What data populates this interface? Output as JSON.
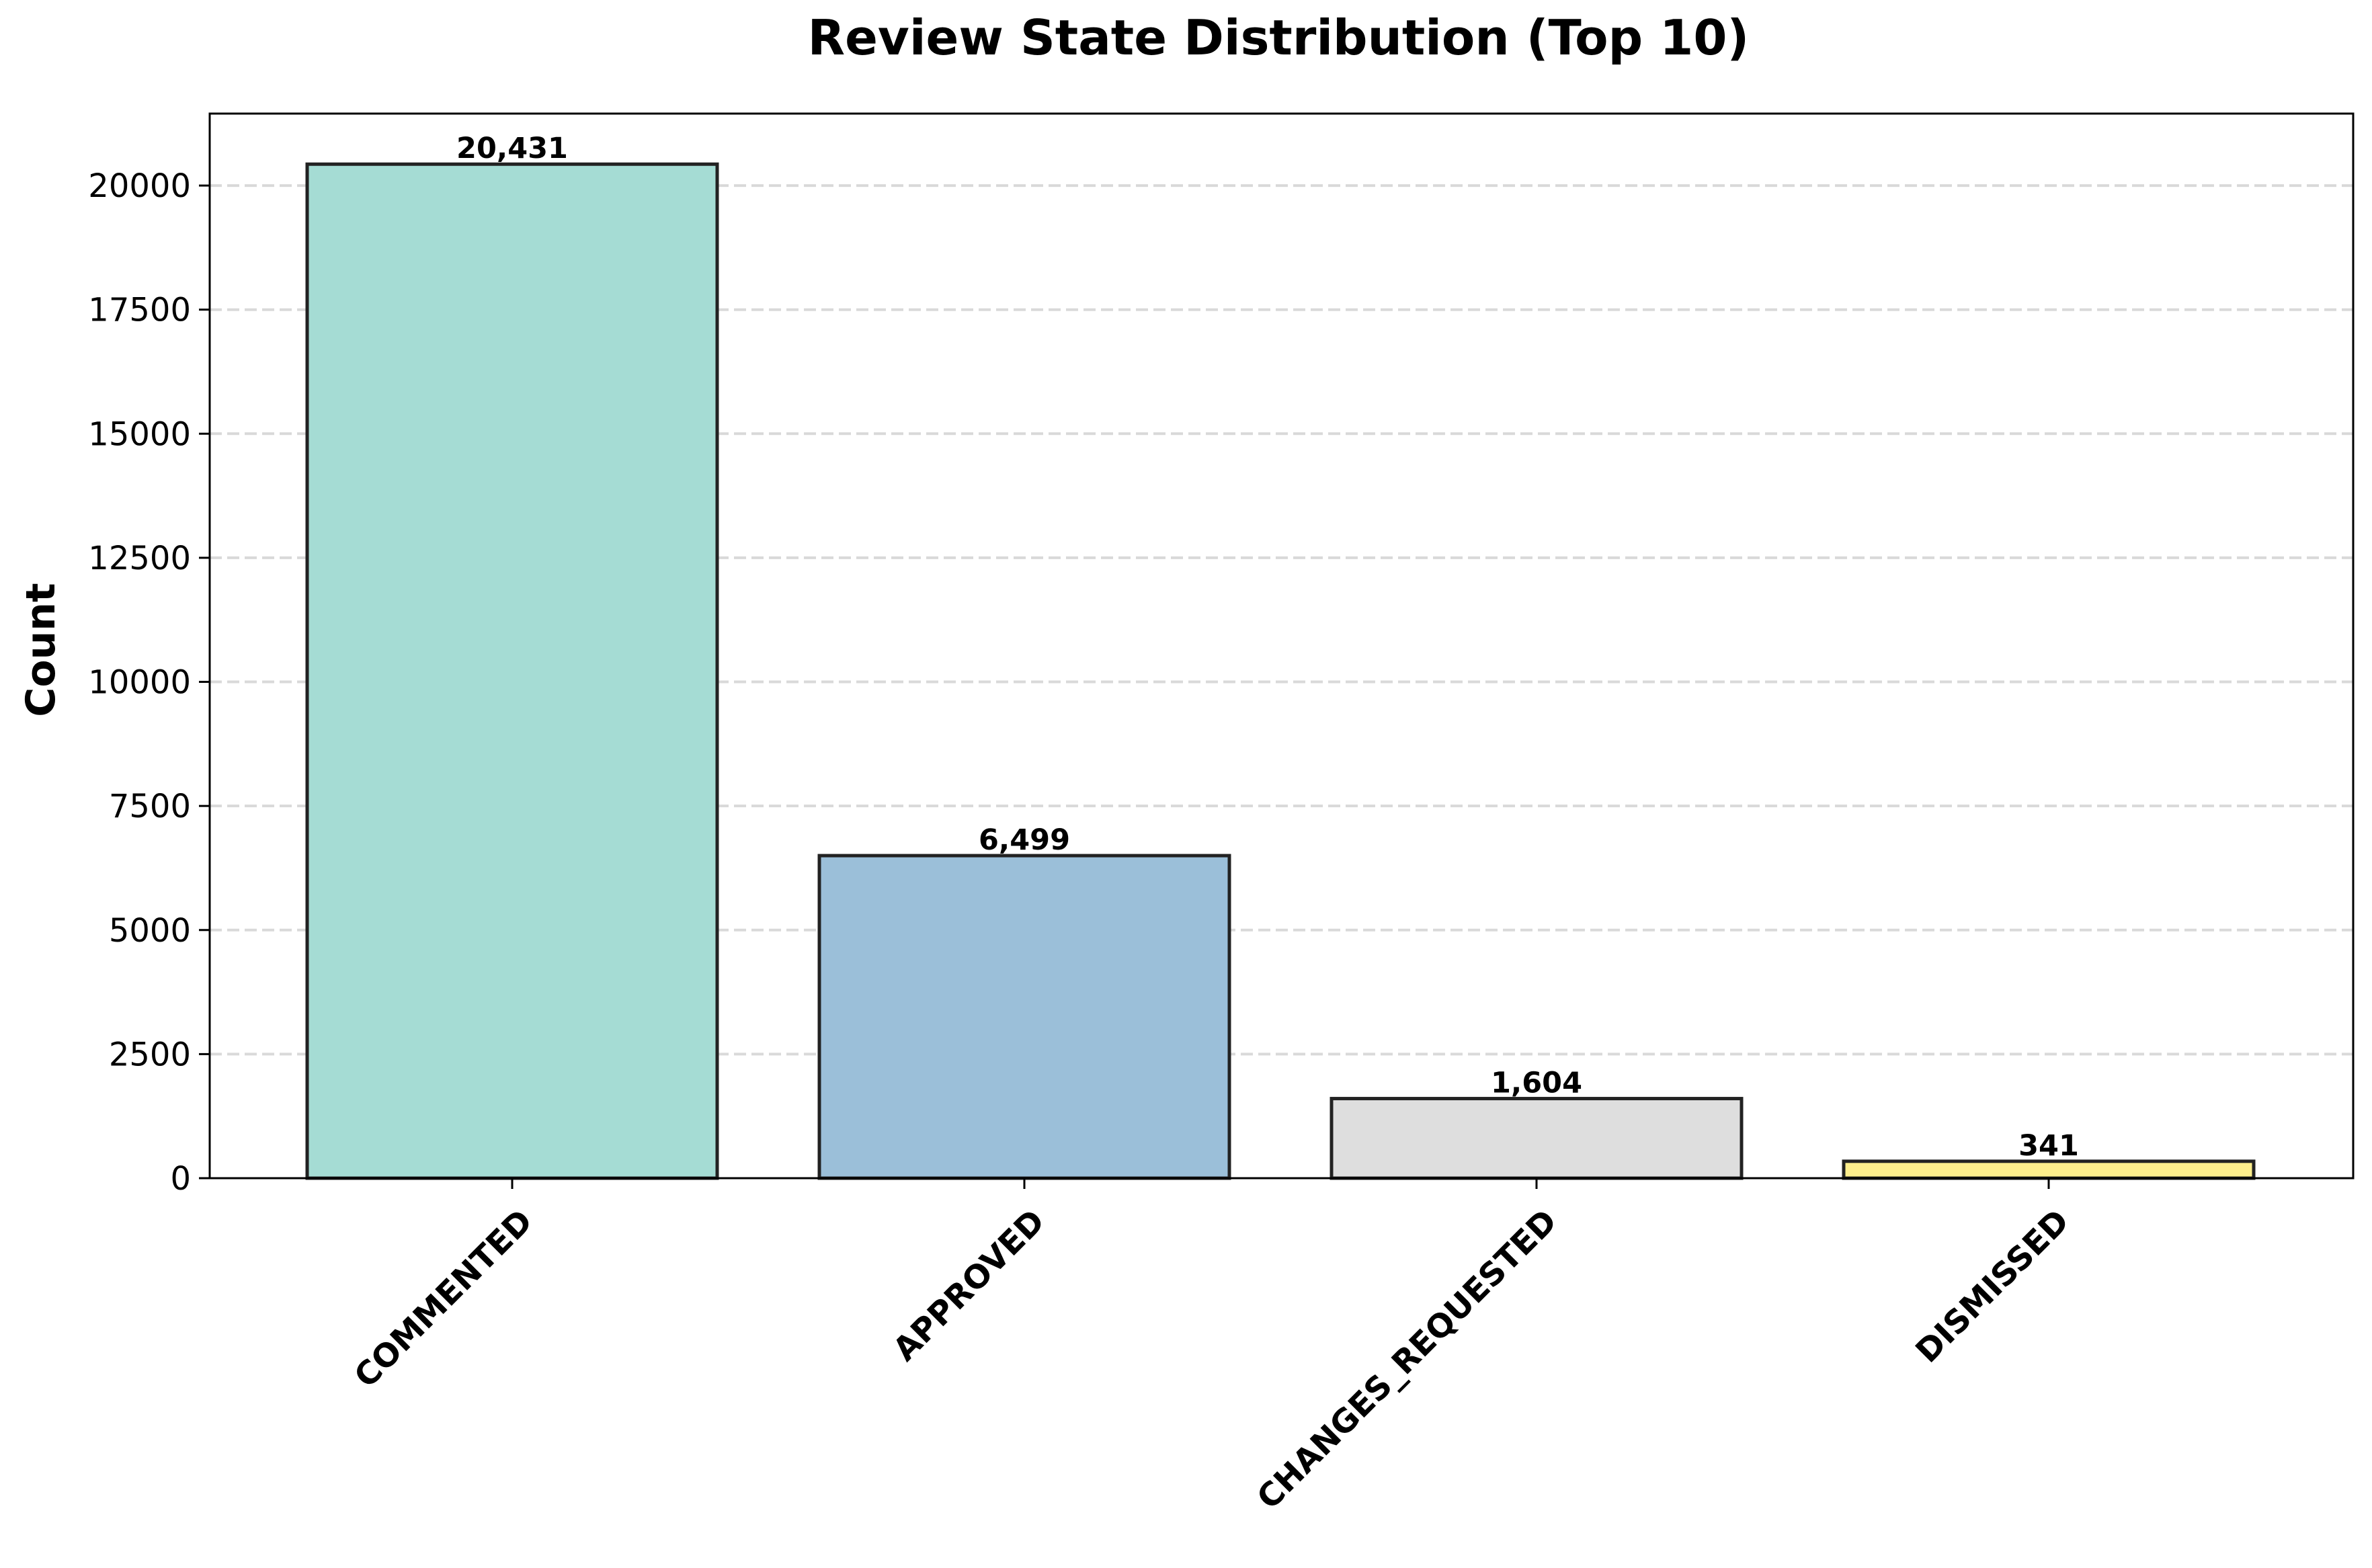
{
  "chart_data": {
    "type": "bar",
    "title": "Review State Distribution (Top 10)",
    "xlabel": "",
    "ylabel": "Count",
    "categories": [
      "COMMENTED",
      "APPROVED",
      "CHANGES_REQUESTED",
      "DISMISSED"
    ],
    "values": [
      20431,
      6499,
      1604,
      341
    ],
    "value_labels": [
      "20,431",
      "6,499",
      "1,604",
      "341"
    ],
    "bar_colors": [
      "#a5dcd4",
      "#9bbfd9",
      "#dedede",
      "#fdee8c"
    ],
    "bar_edge_color": "#222222",
    "ylim": [
      0,
      21450
    ],
    "yticks": [
      0,
      2500,
      5000,
      7500,
      10000,
      12500,
      15000,
      17500,
      20000
    ],
    "ytick_labels": [
      "0",
      "2500",
      "5000",
      "7500",
      "10000",
      "12500",
      "15000",
      "17500",
      "20000"
    ],
    "grid": true,
    "grid_axis": "y",
    "grid_style": "dashed",
    "xtick_rotation": -45,
    "legend": false
  }
}
